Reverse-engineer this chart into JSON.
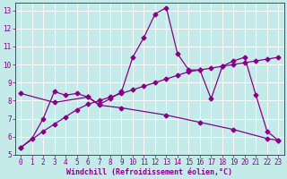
{
  "xlabel": "Windchill (Refroidissement éolien,°C)",
  "background_color": "#c5eaea",
  "line_color": "#880088",
  "grid_color": "#ffffff",
  "xlim": [
    -0.5,
    23.5
  ],
  "ylim": [
    5,
    13.4
  ],
  "xticks": [
    0,
    1,
    2,
    3,
    4,
    5,
    6,
    7,
    8,
    9,
    10,
    11,
    12,
    13,
    14,
    15,
    16,
    17,
    18,
    19,
    20,
    21,
    22,
    23
  ],
  "yticks": [
    5,
    6,
    7,
    8,
    9,
    10,
    11,
    12,
    13
  ],
  "curve1_x": [
    0,
    1,
    2,
    3,
    4,
    5,
    6,
    7,
    8,
    9,
    10,
    11,
    12,
    13,
    14,
    15,
    16,
    17,
    18,
    19,
    20,
    21,
    22,
    23
  ],
  "curve1_y": [
    5.4,
    5.9,
    7.0,
    8.5,
    8.3,
    8.4,
    8.2,
    7.8,
    8.1,
    8.5,
    10.4,
    11.5,
    12.8,
    13.15,
    10.6,
    9.7,
    9.7,
    8.1,
    9.9,
    10.2,
    10.4,
    8.3,
    6.3,
    5.8
  ],
  "curve2_x": [
    0,
    2,
    3,
    4,
    5,
    6,
    7,
    8,
    9,
    10,
    11,
    12,
    13,
    14,
    15,
    16,
    17,
    18,
    19,
    20,
    21,
    22,
    23
  ],
  "curve2_y": [
    5.4,
    6.3,
    6.7,
    7.1,
    7.5,
    7.8,
    8.0,
    8.2,
    8.4,
    8.6,
    8.8,
    9.0,
    9.2,
    9.4,
    9.6,
    9.7,
    9.8,
    9.9,
    10.0,
    10.1,
    10.2,
    10.3,
    10.4
  ],
  "curve3_x": [
    0,
    3,
    6,
    7,
    9,
    13,
    16,
    19,
    22,
    23
  ],
  "curve3_y": [
    8.4,
    7.9,
    8.2,
    7.75,
    7.6,
    7.2,
    6.8,
    6.4,
    5.9,
    5.8
  ],
  "markersize": 2.5,
  "linewidth": 0.9,
  "tick_fontsize": 5.5,
  "label_fontsize": 6,
  "tick_color": "#880088",
  "axis_color": "#880088"
}
